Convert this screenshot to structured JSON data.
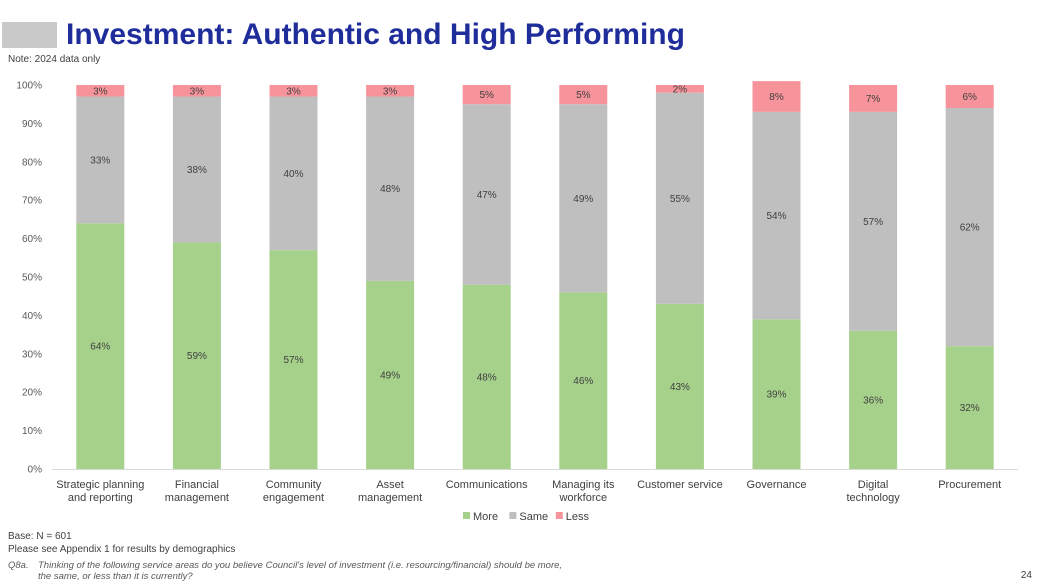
{
  "header": {
    "title": "Investment: Authentic and High Performing",
    "note": "Note: 2024 data only"
  },
  "footer": {
    "base": "Base: N = 601",
    "appendix": "Please see Appendix 1 for results by demographics",
    "question_number": "Q8a.",
    "question_line1": "Thinking of the following service areas do you believe Council's level of investment (i.e. resourcing/financial) should be more,",
    "question_line2": "the same, or less than it is currently?",
    "page_number": "24"
  },
  "chart_data": {
    "type": "bar",
    "stacked": true,
    "orientation": "vertical",
    "categories": [
      [
        "Strategic planning",
        "and reporting"
      ],
      [
        "Financial",
        "management"
      ],
      [
        "Community",
        "engagement"
      ],
      [
        "Asset",
        "management"
      ],
      [
        "Communications"
      ],
      [
        "Managing its",
        "workforce"
      ],
      [
        "Customer service"
      ],
      [
        "Governance"
      ],
      [
        "Digital",
        "technology"
      ],
      [
        "Procurement"
      ]
    ],
    "series": [
      {
        "name": "More",
        "color": "#a6d18b",
        "values": [
          64,
          59,
          57,
          49,
          48,
          46,
          43,
          39,
          36,
          32
        ]
      },
      {
        "name": "Same",
        "color": "#bfbfbf",
        "values": [
          33,
          38,
          40,
          48,
          47,
          49,
          55,
          54,
          57,
          62
        ]
      },
      {
        "name": "Less",
        "color": "#f7949b",
        "values": [
          3,
          3,
          3,
          3,
          5,
          5,
          2,
          8,
          7,
          6
        ]
      }
    ],
    "yticks": [
      "0%",
      "10%",
      "20%",
      "30%",
      "40%",
      "50%",
      "60%",
      "70%",
      "80%",
      "90%",
      "100%"
    ],
    "ylim": [
      0,
      100
    ],
    "label_suffix": "%",
    "legend_position": "bottom",
    "grid": false
  }
}
